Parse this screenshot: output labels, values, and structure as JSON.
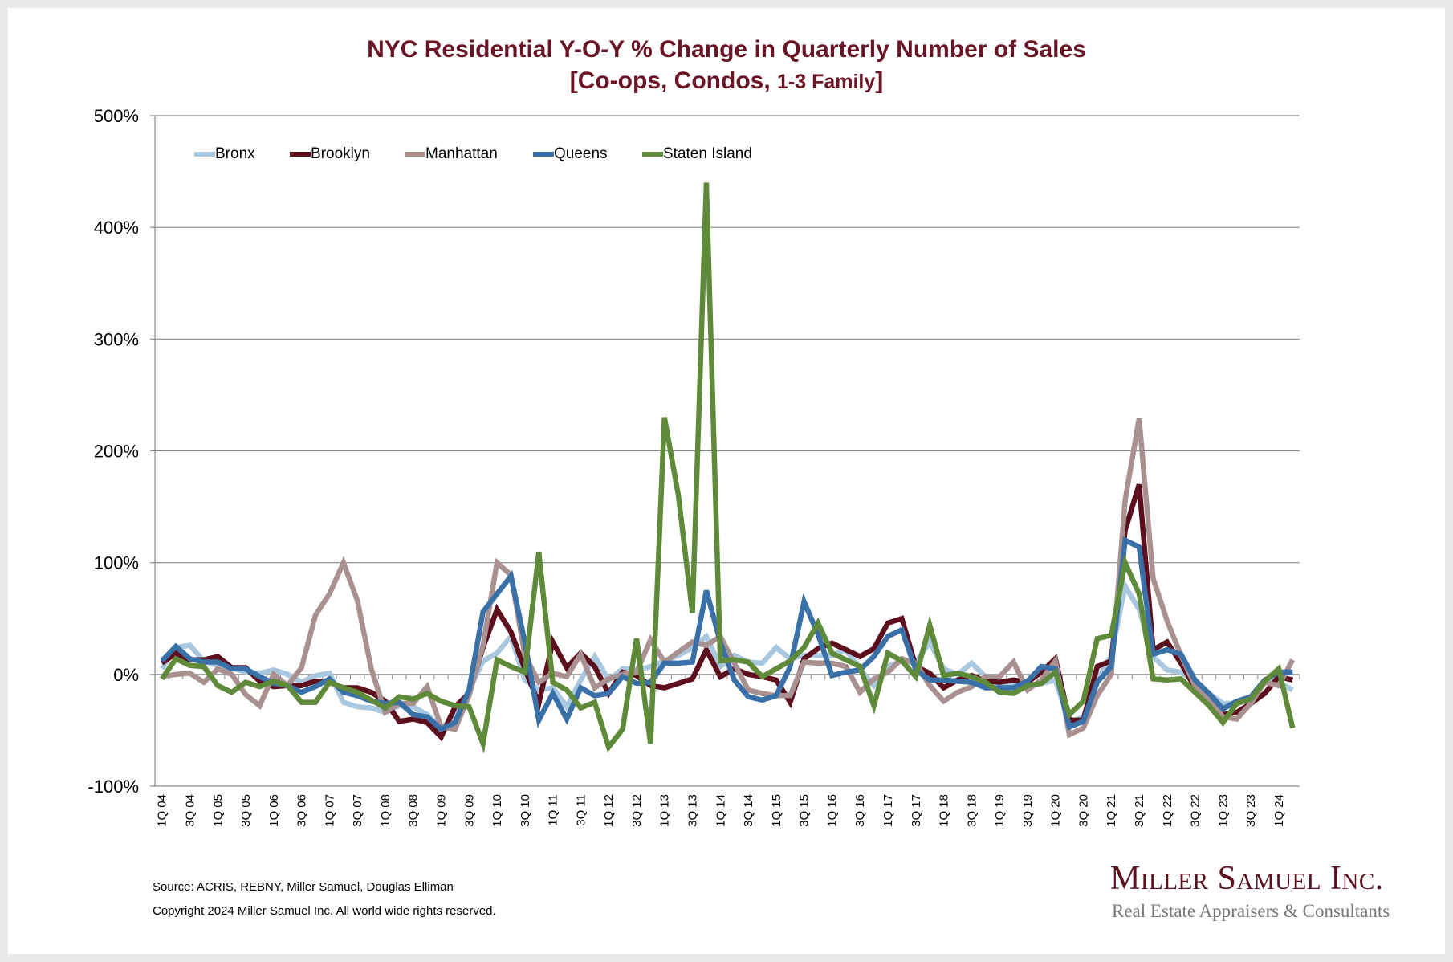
{
  "title_line1": "NYC Residential Y-O-Y % Change in Quarterly Number of Sales",
  "title_line2_main": "[Co-ops, Condos, ",
  "title_line2_small": "1-3 Family",
  "title_line2_end": "]",
  "footer": {
    "source": "Source: ACRIS, REBNY, Miller Samuel, Douglas Elliman",
    "copyright": "Copyright 2024 Miller Samuel Inc.  All world wide rights reserved."
  },
  "logo": {
    "name": "Miller Samuel Inc.",
    "tagline": "Real Estate Appraisers & Consultants"
  },
  "chart_data": {
    "type": "line",
    "title": "NYC Residential Y-O-Y % Change in Quarterly Number of Sales [Co-ops, Condos, 1-3 Family]",
    "xlabel": "",
    "ylabel": "",
    "ylim": [
      -100,
      500
    ],
    "y_ticks": [
      -100,
      0,
      100,
      200,
      300,
      400,
      500
    ],
    "y_tick_labels": [
      "-100%",
      "0%",
      "100%",
      "200%",
      "300%",
      "400%",
      "500%"
    ],
    "grid": true,
    "legend_position": "top-left",
    "x_note_points": "quarterly, 1Q 04 through 2Q 24; labels shown every other quarter",
    "x_tick_labels": [
      "1Q 04",
      "3Q 04",
      "1Q 05",
      "3Q 05",
      "1Q 06",
      "3Q 06",
      "1Q 07",
      "3Q 07",
      "1Q 08",
      "3Q 08",
      "1Q 09",
      "3Q 09",
      "1Q 10",
      "3Q 10",
      "1Q 11",
      "3Q 11",
      "1Q 12",
      "3Q 12",
      "1Q 13",
      "3Q 13",
      "1Q 14",
      "3Q 14",
      "1Q 15",
      "3Q 15",
      "1Q 16",
      "3Q 16",
      "1Q 17",
      "3Q 17",
      "1Q 18",
      "3Q 18",
      "1Q 19",
      "3Q 19",
      "1Q 20",
      "3Q 20",
      "1Q 21",
      "3Q 21",
      "1Q 22",
      "3Q 22",
      "1Q 23",
      "3Q 23",
      "1Q 24"
    ],
    "series": [
      {
        "name": "Bronx",
        "color": "#a9c8df",
        "values": [
          5,
          24,
          26,
          12,
          8,
          6,
          2,
          1,
          4,
          0,
          -7,
          -1,
          1,
          -25,
          -29,
          -30,
          -34,
          -28,
          -29,
          -36,
          -48,
          -38,
          -14,
          12,
          19,
          34,
          -5,
          -14,
          -12,
          -29,
          -5,
          16,
          -5,
          5,
          4,
          7,
          12,
          17,
          24,
          34,
          7,
          17,
          11,
          10,
          24,
          14,
          17,
          17,
          17,
          22,
          5,
          -10,
          7,
          12,
          10,
          29,
          5,
          0,
          10,
          -2,
          -8,
          -8,
          -10,
          -8,
          -5,
          -43,
          -38,
          -5,
          17,
          79,
          58,
          16,
          4,
          2,
          -7,
          -17,
          -26,
          -26,
          -22,
          -5,
          -7,
          -14
        ]
      },
      {
        "name": "Brooklyn",
        "color": "#5e0f1e",
        "values": [
          10,
          19,
          13,
          13,
          16,
          6,
          6,
          -6,
          -11,
          -10,
          -10,
          -6,
          -7,
          -12,
          -12,
          -16,
          -24,
          -42,
          -40,
          -43,
          -56,
          -29,
          -17,
          24,
          58,
          38,
          5,
          -26,
          29,
          6,
          19,
          7,
          -17,
          2,
          -1,
          -10,
          -12,
          -8,
          -4,
          22,
          -2,
          5,
          0,
          -2,
          -5,
          -25,
          14,
          23,
          28,
          22,
          16,
          23,
          46,
          50,
          7,
          1,
          -12,
          -5,
          -1,
          -6,
          -7,
          -5,
          -7,
          2,
          14,
          -41,
          -41,
          7,
          12,
          129,
          170,
          22,
          29,
          10,
          -12,
          -22,
          -36,
          -34,
          -26,
          -17,
          -2,
          -5
        ]
      },
      {
        "name": "Manhattan",
        "color": "#a89190",
        "values": [
          -2,
          0,
          1,
          -7,
          5,
          0,
          -18,
          -28,
          0,
          -10,
          6,
          53,
          72,
          100,
          66,
          5,
          -34,
          -26,
          -26,
          -11,
          -47,
          -49,
          -19,
          26,
          100,
          89,
          17,
          -7,
          1,
          -2,
          18,
          -12,
          -4,
          0,
          2,
          31,
          11,
          20,
          29,
          26,
          34,
          10,
          -14,
          -17,
          -19,
          -19,
          11,
          10,
          10,
          7,
          -16,
          -4,
          2,
          14,
          10,
          -10,
          -24,
          -16,
          -11,
          -2,
          -2,
          11,
          -14,
          -5,
          12,
          -54,
          -48,
          -19,
          0,
          156,
          229,
          86,
          48,
          17,
          -10,
          -22,
          -38,
          -40,
          -26,
          -7,
          -10,
          13
        ]
      },
      {
        "name": "Queens",
        "color": "#3a70a8",
        "values": [
          12,
          25,
          14,
          11,
          11,
          5,
          5,
          -2,
          -8,
          -10,
          -16,
          -11,
          -4,
          -16,
          -19,
          -24,
          -26,
          -25,
          -36,
          -38,
          -49,
          -43,
          -14,
          56,
          72,
          88,
          29,
          -41,
          -17,
          -40,
          -12,
          -19,
          -17,
          -2,
          -8,
          -7,
          10,
          10,
          11,
          75,
          29,
          -5,
          -20,
          -23,
          -19,
          7,
          65,
          36,
          -1,
          2,
          4,
          16,
          34,
          40,
          4,
          -5,
          -5,
          -6,
          -7,
          -12,
          -12,
          -12,
          -6,
          7,
          5,
          -47,
          -42,
          -7,
          7,
          120,
          114,
          18,
          22,
          18,
          -5,
          -17,
          -31,
          -24,
          -20,
          -5,
          2,
          2
        ]
      },
      {
        "name": "Staten Island",
        "color": "#5f8a3a",
        "values": [
          -4,
          14,
          8,
          7,
          -10,
          -16,
          -7,
          -11,
          -6,
          -10,
          -25,
          -25,
          -7,
          -12,
          -16,
          -23,
          -30,
          -20,
          -22,
          -17,
          -24,
          -28,
          -29,
          -62,
          13,
          7,
          2,
          109,
          -7,
          -14,
          -30,
          -25,
          -65,
          -49,
          32,
          -62,
          230,
          160,
          55,
          440,
          12,
          13,
          11,
          -2,
          5,
          12,
          24,
          46,
          19,
          13,
          7,
          -28,
          19,
          12,
          -2,
          44,
          -1,
          1,
          -2,
          -7,
          -16,
          -17,
          -10,
          -8,
          2,
          -36,
          -24,
          32,
          35,
          100,
          72,
          -4,
          -5,
          -4,
          -16,
          -28,
          -43,
          -26,
          -22,
          -6,
          5,
          -48
        ]
      }
    ]
  }
}
